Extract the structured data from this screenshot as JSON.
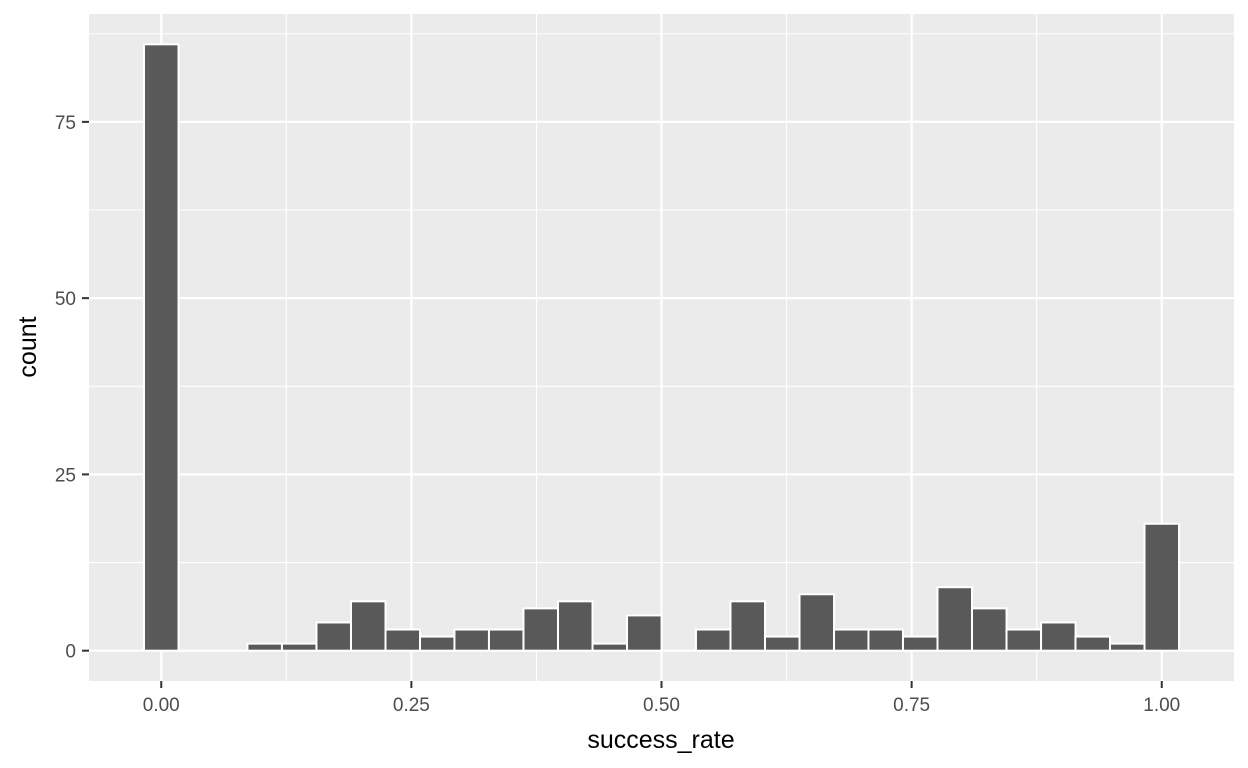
{
  "chart_data": {
    "type": "bar",
    "subtype": "histogram",
    "xlabel": "success_rate",
    "ylabel": "count",
    "bin_width": 0.0345,
    "bins": [
      {
        "center": 0.0,
        "count": 86
      },
      {
        "center": 0.0345,
        "count": 0
      },
      {
        "center": 0.069,
        "count": 0
      },
      {
        "center": 0.1034,
        "count": 1
      },
      {
        "center": 0.1379,
        "count": 1
      },
      {
        "center": 0.1724,
        "count": 4
      },
      {
        "center": 0.2069,
        "count": 7
      },
      {
        "center": 0.2414,
        "count": 3
      },
      {
        "center": 0.2759,
        "count": 2
      },
      {
        "center": 0.3103,
        "count": 3
      },
      {
        "center": 0.3448,
        "count": 3
      },
      {
        "center": 0.3793,
        "count": 6
      },
      {
        "center": 0.4138,
        "count": 7
      },
      {
        "center": 0.4483,
        "count": 1
      },
      {
        "center": 0.4828,
        "count": 5
      },
      {
        "center": 0.5172,
        "count": 0
      },
      {
        "center": 0.5517,
        "count": 3
      },
      {
        "center": 0.5862,
        "count": 7
      },
      {
        "center": 0.6207,
        "count": 2
      },
      {
        "center": 0.6552,
        "count": 8
      },
      {
        "center": 0.6897,
        "count": 3
      },
      {
        "center": 0.7241,
        "count": 3
      },
      {
        "center": 0.7586,
        "count": 2
      },
      {
        "center": 0.7931,
        "count": 9
      },
      {
        "center": 0.8276,
        "count": 6
      },
      {
        "center": 0.8621,
        "count": 3
      },
      {
        "center": 0.8966,
        "count": 4
      },
      {
        "center": 0.931,
        "count": 2
      },
      {
        "center": 0.9655,
        "count": 1
      },
      {
        "center": 1.0,
        "count": 18
      }
    ],
    "x_ticks": [
      {
        "value": 0.0,
        "label": "0.00"
      },
      {
        "value": 0.25,
        "label": "0.25"
      },
      {
        "value": 0.5,
        "label": "0.50"
      },
      {
        "value": 0.75,
        "label": "0.75"
      },
      {
        "value": 1.0,
        "label": "1.00"
      }
    ],
    "y_ticks": [
      {
        "value": 0,
        "label": "0"
      },
      {
        "value": 25,
        "label": "25"
      },
      {
        "value": 50,
        "label": "50"
      },
      {
        "value": 75,
        "label": "75"
      }
    ],
    "xlim": [
      -0.0722,
      1.0722
    ],
    "ylim": [
      -4.3,
      90.3
    ],
    "grid": true,
    "colors": {
      "panel_background": "#ebebeb",
      "grid_major": "#ffffff",
      "bar_fill": "#595959",
      "bar_outline": "#ffffff",
      "tick_text": "#4d4d4d",
      "axis_title_text": "#000000"
    }
  }
}
